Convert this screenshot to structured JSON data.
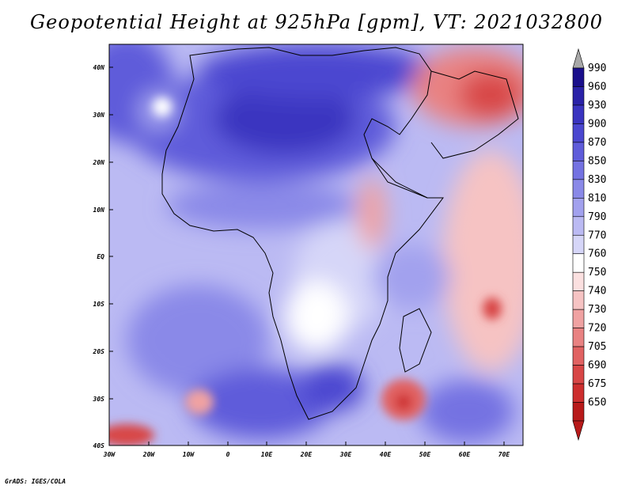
{
  "title": "Geopotential Height at 925hPa [gpm], VT: 2021032800",
  "credit": "GrADS: IGES/COLA",
  "lat_labels": [
    "40N",
    "30N",
    "20N",
    "10N",
    "EQ",
    "10S",
    "20S",
    "30S",
    "40S"
  ],
  "lon_labels": [
    "30W",
    "20W",
    "10W",
    "0",
    "10E",
    "20E",
    "30E",
    "40E",
    "50E",
    "60E",
    "70E"
  ],
  "colorbar": {
    "labels": [
      "990",
      "960",
      "930",
      "900",
      "870",
      "850",
      "830",
      "810",
      "790",
      "770",
      "760",
      "750",
      "740",
      "730",
      "720",
      "705",
      "690",
      "675",
      "650"
    ],
    "colors": [
      "#1a0f8c",
      "#2a22a8",
      "#3a34c0",
      "#4b47d0",
      "#5f5cda",
      "#7472e2",
      "#8a89e8",
      "#a2a1ee",
      "#bbbaf3",
      "#d6d6f8",
      "#ffffff",
      "#fbe0e0",
      "#f6c3c3",
      "#f0a2a2",
      "#e98282",
      "#e16262",
      "#d84646",
      "#cd2e2e",
      "#b81a1a"
    ],
    "top_arrow_color": "#a8a8a8",
    "bottom_arrow_color": "#b81a1a"
  }
}
